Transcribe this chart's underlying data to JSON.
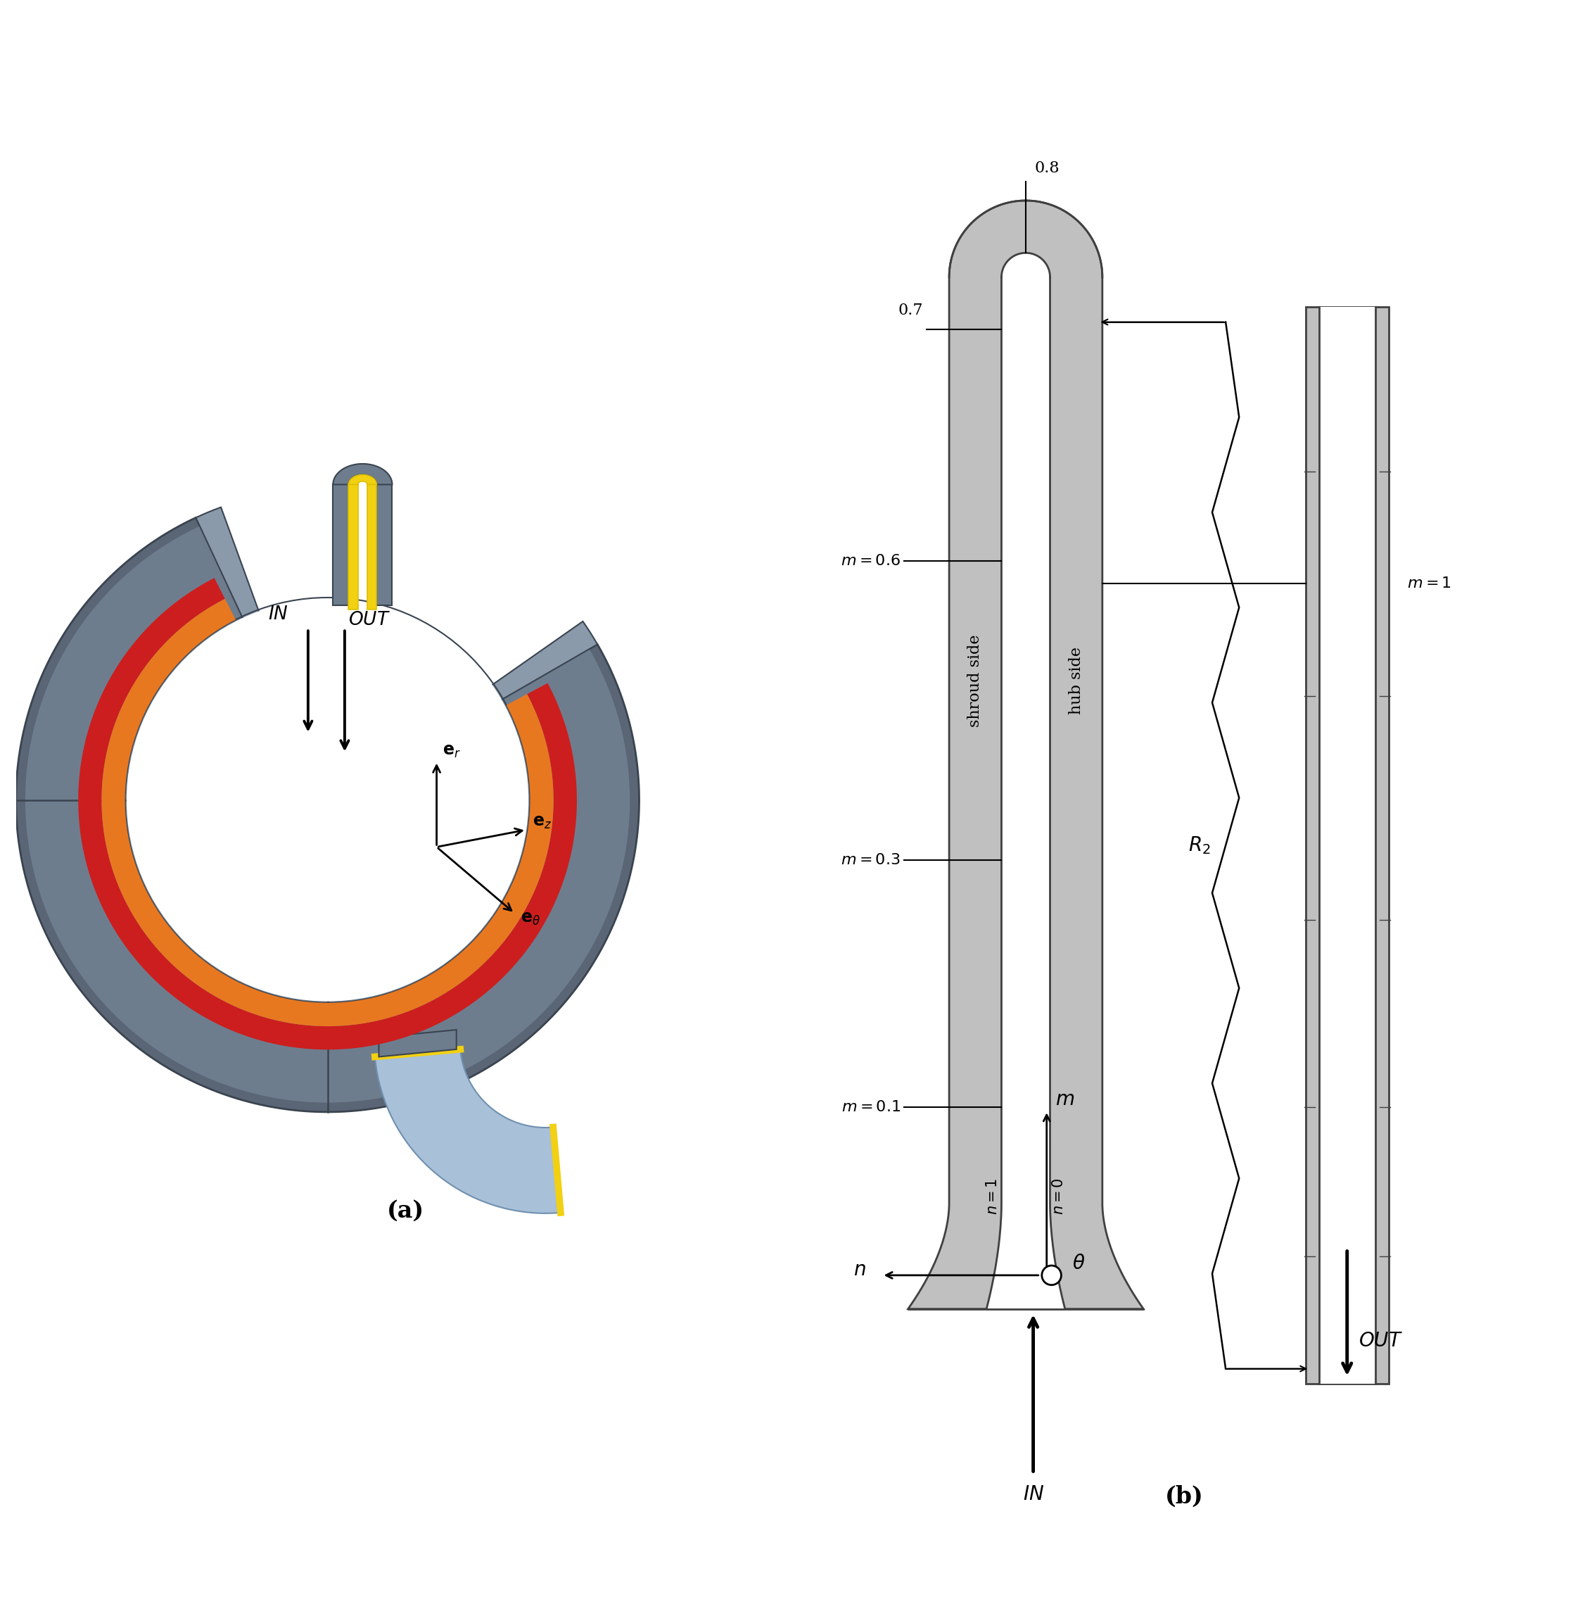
{
  "bg_color": "#ffffff",
  "gray_body": "#5a6575",
  "gray_face": "#6e7d8e",
  "gray_light_face": "#8a9aaa",
  "gray_rim": "#7a8a9a",
  "orange_col": "#e87820",
  "red_col": "#cc1e1e",
  "yellow_col": "#f2d012",
  "yellow2_col": "#dcc000",
  "blue_light": "#a8c0d8",
  "blue_mid": "#90aac8",
  "white": "#ffffff",
  "black": "#000000",
  "gray_duct": "#c0c0c0",
  "gray_duct_edge": "#404040",
  "label_a": "(a)",
  "label_b": "(b)"
}
